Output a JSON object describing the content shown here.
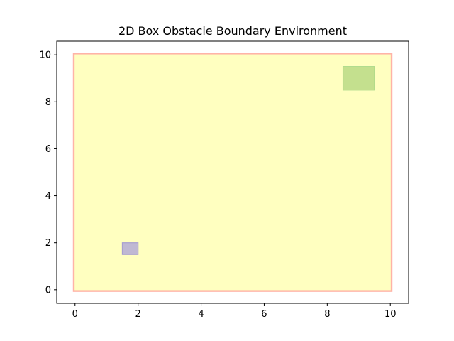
{
  "chart_data": {
    "type": "area",
    "title": "2D Box Obstacle Boundary Environment",
    "xlabel": "",
    "ylabel": "",
    "xlim": [
      -0.58,
      10.58
    ],
    "ylim": [
      -0.58,
      10.58
    ],
    "x_ticks": [
      0,
      2,
      4,
      6,
      8,
      10
    ],
    "y_ticks": [
      0,
      2,
      4,
      6,
      8,
      10
    ],
    "x_tick_labels": [
      "0",
      "2",
      "4",
      "6",
      "8",
      "10"
    ],
    "y_tick_labels": [
      "0",
      "2",
      "4",
      "6",
      "8",
      "10"
    ],
    "grid": false,
    "regions": [
      {
        "role": "boundary",
        "x": [
          0,
          10
        ],
        "y": [
          0,
          10
        ],
        "fill": "#ffb3a7",
        "stroke": "#ffb3a7"
      },
      {
        "role": "free-space",
        "x": [
          0,
          10
        ],
        "y": [
          0,
          10
        ],
        "fill": "#ffffc0",
        "stroke": "#ffffc0"
      },
      {
        "role": "start",
        "x": [
          1.5,
          2.0
        ],
        "y": [
          1.5,
          2.0
        ],
        "fill": "#bfb8d3",
        "stroke": "#a89fd0"
      },
      {
        "role": "goal",
        "x": [
          8.5,
          9.5
        ],
        "y": [
          8.5,
          9.5
        ],
        "fill": "#c4e08e",
        "stroke": "#a8d888"
      }
    ]
  }
}
